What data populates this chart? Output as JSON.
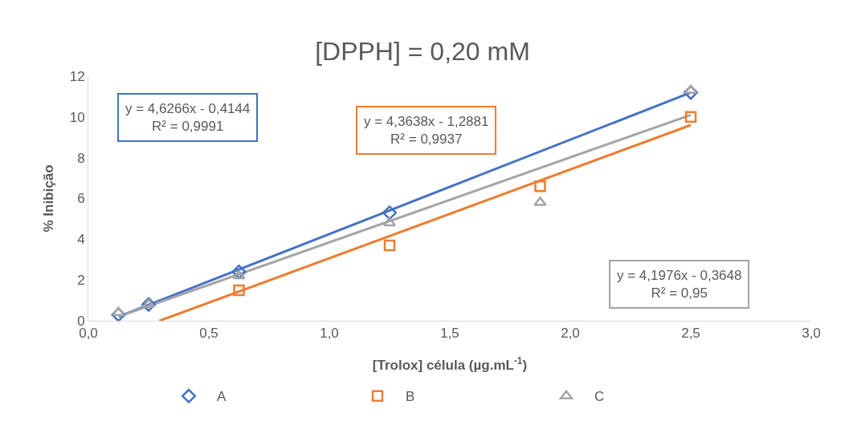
{
  "chart_data": {
    "type": "scatter",
    "title": "[DPPH] = 0,20 mM",
    "xlabel": "[Trolox] célula (µg.mL$^{-1}$)",
    "ylabel": "% Inibição",
    "x": [
      0.125,
      0.25,
      0.625,
      1.25,
      1.875,
      2.5
    ],
    "series": [
      {
        "name": "A",
        "color": "#4472c4",
        "marker": "diamond",
        "values": [
          0.3,
          0.8,
          2.4,
          5.3,
          null,
          11.2
        ]
      },
      {
        "name": "B",
        "color": "#ed7d31",
        "marker": "square",
        "values": [
          null,
          null,
          1.5,
          3.7,
          6.6,
          10.0
        ]
      },
      {
        "name": "C",
        "color": "#a5a5a5",
        "marker": "triangle",
        "values": [
          0.4,
          0.8,
          2.2,
          4.8,
          5.8,
          11.3
        ]
      },
      {
        "type": "line",
        "color": "#4472c4",
        "x": [
          0.125,
          2.5
        ],
        "values": [
          0.2,
          11.2
        ]
      },
      {
        "type": "line",
        "color": "#ed7d31",
        "x": [
          0.2952,
          2.5
        ],
        "values": [
          0,
          9.6
        ]
      },
      {
        "type": "line",
        "color": "#a5a5a5",
        "x": [
          0.125,
          2.5
        ],
        "values": [
          0.2,
          10.1
        ]
      }
    ],
    "annotations": [
      "y = 4,6266x - 0,4144\nR² = 0,9991",
      "y = 4,3638x - 1,2881\nR² = 0,9937",
      "y = 4,1976x - 0,3648\nR² = 0,95"
    ],
    "xlim": [
      0,
      3
    ],
    "xticks": [
      {
        "value": 0,
        "label": "0,0"
      },
      {
        "value": 0.5,
        "label": "0,5"
      },
      {
        "value": 1,
        "label": "1,0"
      },
      {
        "value": 1.5,
        "label": "1,5"
      },
      {
        "value": 2,
        "label": "2,0"
      },
      {
        "value": 2.5,
        "label": "2,5"
      },
      {
        "value": 3,
        "label": "3,0"
      }
    ],
    "ylim": [
      0,
      12
    ],
    "yticks": [
      0,
      2,
      4,
      6,
      8,
      10,
      12
    ],
    "grid": false,
    "legend": "bottom"
  }
}
